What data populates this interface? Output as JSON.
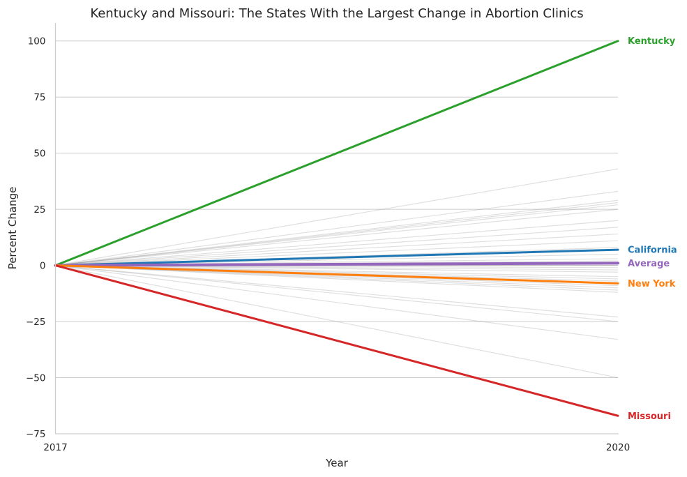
{
  "chart_data": {
    "type": "line",
    "title": "Kentucky and Missouri: The States With the Largest Change in Abortion Clinics",
    "xlabel": "Year",
    "ylabel": "Percent Change",
    "x": [
      "2017",
      "2020"
    ],
    "xticks": [
      "2017",
      "2020"
    ],
    "ylim": [
      -75,
      108
    ],
    "yticks": [
      100,
      75,
      50,
      25,
      0,
      -25,
      -50,
      -75
    ],
    "ytick_labels": [
      "100",
      "75",
      "50",
      "25",
      "0",
      "−25",
      "−50",
      "−75"
    ],
    "grid": "horizontal",
    "highlighted_series": [
      {
        "name": "Kentucky",
        "values": [
          0,
          100
        ],
        "color": "#2ca02c"
      },
      {
        "name": "California",
        "values": [
          0,
          7
        ],
        "color": "#1f77b4"
      },
      {
        "name": "Average",
        "values": [
          0,
          1
        ],
        "color": "#9467bd"
      },
      {
        "name": "New York",
        "values": [
          0,
          -8
        ],
        "color": "#ff7f0e"
      },
      {
        "name": "Missouri",
        "values": [
          0,
          -67
        ],
        "color": "#d62728"
      }
    ],
    "background_series": [
      {
        "values": [
          0,
          43
        ]
      },
      {
        "values": [
          0,
          33
        ]
      },
      {
        "values": [
          0,
          29
        ]
      },
      {
        "values": [
          0,
          28
        ]
      },
      {
        "values": [
          0,
          27
        ]
      },
      {
        "values": [
          0,
          25
        ]
      },
      {
        "values": [
          0,
          20
        ]
      },
      {
        "values": [
          0,
          17
        ]
      },
      {
        "values": [
          0,
          14
        ]
      },
      {
        "values": [
          0,
          11
        ]
      },
      {
        "values": [
          0,
          8
        ]
      },
      {
        "values": [
          0,
          5
        ]
      },
      {
        "values": [
          0,
          3
        ]
      },
      {
        "values": [
          0,
          2
        ]
      },
      {
        "values": [
          0,
          0
        ]
      },
      {
        "values": [
          0,
          -1
        ]
      },
      {
        "values": [
          0,
          -2
        ]
      },
      {
        "values": [
          0,
          -3
        ]
      },
      {
        "values": [
          0,
          -5
        ]
      },
      {
        "values": [
          0,
          -6
        ]
      },
      {
        "values": [
          0,
          -7
        ]
      },
      {
        "values": [
          0,
          -9
        ]
      },
      {
        "values": [
          0,
          -10
        ]
      },
      {
        "values": [
          0,
          -11
        ]
      },
      {
        "values": [
          0,
          -12
        ]
      },
      {
        "values": [
          0,
          -23
        ]
      },
      {
        "values": [
          0,
          -25
        ]
      },
      {
        "values": [
          0,
          -33
        ]
      },
      {
        "values": [
          0,
          -50
        ]
      }
    ]
  }
}
